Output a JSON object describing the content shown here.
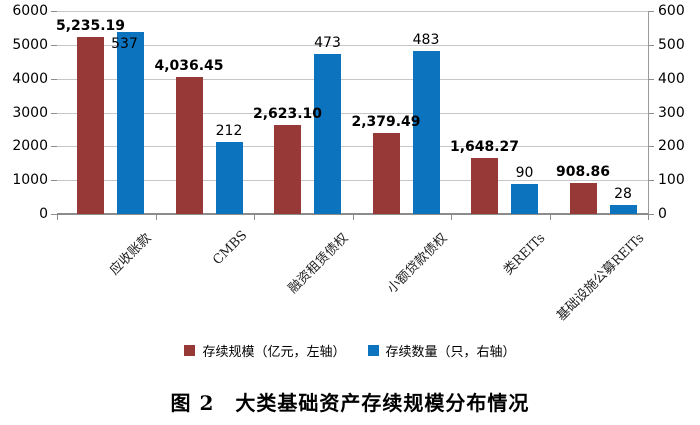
{
  "chart_data": {
    "type": "bar",
    "title": "图 2　大类基础资产存续规模分布情况",
    "categories": [
      "应收账款",
      "CMBS",
      "融资租赁债权",
      "小额贷款债权",
      "类REITs",
      "基础设施公募REITs"
    ],
    "series": [
      {
        "name": "存续规模（亿元，左轴）",
        "axis": "left",
        "color": "#973a37",
        "values": [
          5235.19,
          4036.45,
          2623.1,
          2379.49,
          1648.27,
          908.86
        ],
        "labels": [
          "5,235.19",
          "4,036.45",
          "2,623.10",
          "2,379.49",
          "1,648.27",
          "908.86"
        ],
        "label_bold": true
      },
      {
        "name": "存续数量（只，右轴）",
        "axis": "right",
        "color": "#0c73be",
        "values": [
          537,
          212,
          473,
          483,
          90,
          28
        ],
        "labels": [
          "537",
          "212",
          "473",
          "483",
          "90",
          "28"
        ],
        "label_bold": false
      }
    ],
    "left_axis": {
      "min": 0,
      "max": 6000,
      "step": 1000,
      "ticks": [
        "0",
        "1000",
        "2000",
        "3000",
        "4000",
        "5000",
        "6000"
      ]
    },
    "right_axis": {
      "min": 0,
      "max": 600,
      "step": 100,
      "ticks": [
        "0",
        "100",
        "200",
        "300",
        "400",
        "500",
        "600"
      ]
    },
    "grid": true,
    "legend_position": "bottom"
  },
  "colors": {
    "scale_series": "#973a37",
    "count_series": "#0c73be",
    "gridline": "#c6c6c6",
    "axis_line": "#8c8c8c",
    "text": "#000000"
  }
}
